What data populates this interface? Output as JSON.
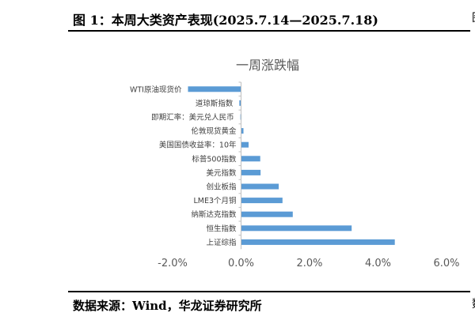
{
  "figure_title": "图 1：本周大类资产表现(2025.7.14—2025.7.18)",
  "source_note": "数据来源：Wind，华龙证券研究所",
  "edge_fragments": [
    "图",
    "数"
  ],
  "chart_data": {
    "type": "bar",
    "orientation": "horizontal",
    "title": "一周涨跌幅",
    "categories": [
      "WTI原油现货价",
      "道琼斯指数",
      "即期汇率：美元兑人民币",
      "伦敦现货黄金",
      "美国国债收益率：10年",
      "标普500指数",
      "美元指数",
      "创业板指",
      "LME3个月铜",
      "纳斯达克指数",
      "恒生指数",
      "上证综指"
    ],
    "values": [
      -1.55,
      -0.05,
      -0.02,
      0.07,
      0.22,
      0.56,
      0.57,
      1.1,
      1.21,
      1.51,
      3.23,
      4.49
    ],
    "xlim": [
      -2.0,
      6.0
    ],
    "xticks": [
      "-2.0%",
      "0.0%",
      "2.0%",
      "4.0%",
      "6.0%"
    ],
    "bar_color": "#5b9bd5",
    "grid": false,
    "legend": "none"
  }
}
